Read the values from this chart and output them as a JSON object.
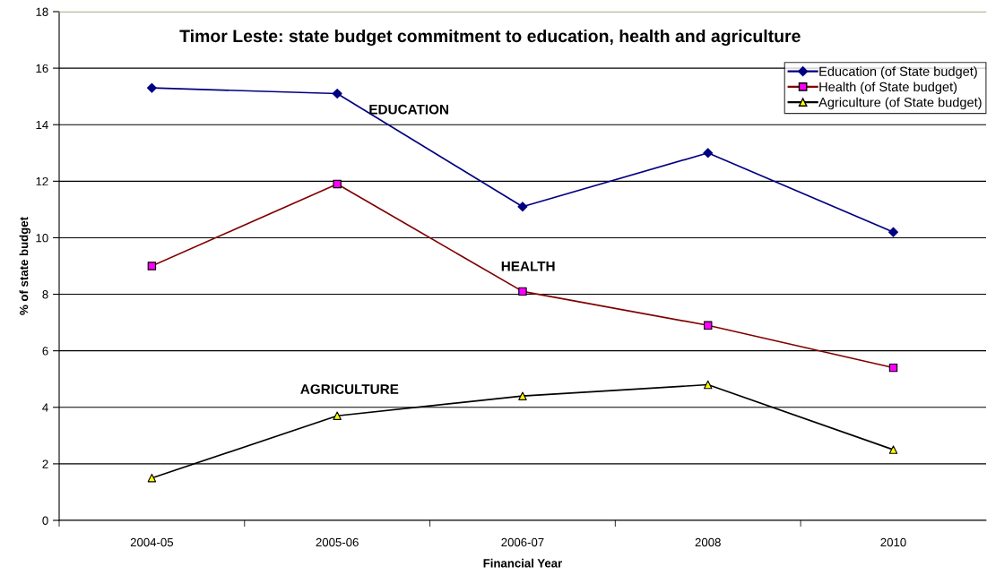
{
  "chart_data": {
    "type": "line",
    "title": "Timor Leste: state budget commitment to education, health and agriculture",
    "xlabel": "Financial Year",
    "ylabel": "% of state budget",
    "categories": [
      "2004-05",
      "2005-06",
      "2006-07",
      "2008",
      "2010"
    ],
    "series": [
      {
        "name": "Education (of State budget)",
        "color": "#000080",
        "colors": [
          "#000080",
          "#000080",
          "#000080",
          "#000080",
          "#000080"
        ],
        "marker": "diamond",
        "values": [
          15.3,
          15.1,
          11.1,
          13.0,
          10.2
        ]
      },
      {
        "name": "Health (of State budget)",
        "color": "#800000",
        "colors": [
          "#ff00ff",
          "#ff00ff",
          "#ff00ff",
          "#ff00ff",
          "#ff00ff"
        ],
        "marker": "square",
        "values": [
          9.0,
          11.9,
          8.1,
          6.9,
          5.4
        ]
      },
      {
        "name": "Agriculture (of State budget)",
        "color": "#000000",
        "colors": [
          "#ffff00",
          "#ffff00",
          "#ffff00",
          "#ffff00",
          "#ffff00"
        ],
        "marker": "triangle",
        "values": [
          1.5,
          3.7,
          4.4,
          4.8,
          2.5
        ]
      }
    ],
    "annotations": [
      "EDUCATION",
      "HEALTH",
      "AGRICULTURE"
    ],
    "ylim": [
      0,
      18
    ],
    "yticks": [
      0,
      2,
      4,
      6,
      8,
      10,
      12,
      14,
      16,
      18
    ],
    "grid": "y",
    "legend": "top right",
    "line_style": "solid"
  }
}
